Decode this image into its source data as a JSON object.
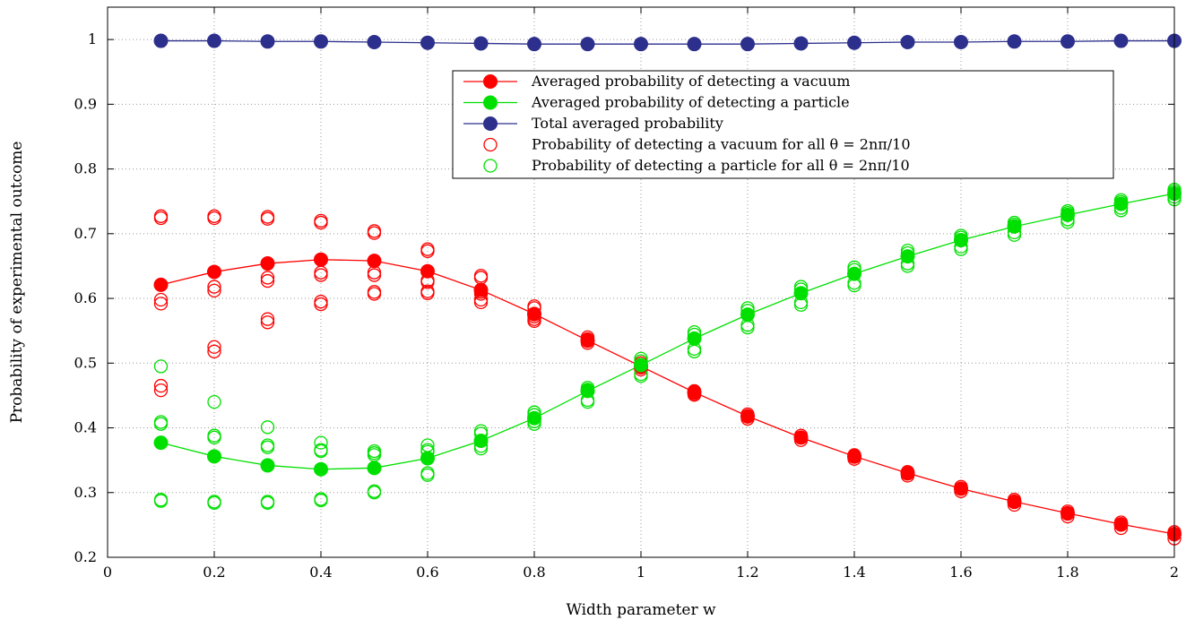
{
  "chart_data": {
    "type": "scatter",
    "xlabel": "Width parameter w",
    "ylabel": "Probability of experimental outcome",
    "xlim": [
      0,
      2
    ],
    "ylim": [
      0.2,
      1.05
    ],
    "grid": true,
    "legend_position": "top-right",
    "x_ticks": [
      "0",
      "0.2",
      "0.4",
      "0.6",
      "0.8",
      "1",
      "1.2",
      "1.4",
      "1.6",
      "1.8",
      "2"
    ],
    "y_ticks": [
      "0.2",
      "0.3",
      "0.4",
      "0.5",
      "0.6",
      "0.7",
      "0.8",
      "0.9",
      "1"
    ],
    "x": [
      0.1,
      0.2,
      0.3,
      0.4,
      0.5,
      0.6,
      0.7,
      0.8,
      0.9,
      1.0,
      1.1,
      1.2,
      1.3,
      1.4,
      1.5,
      1.6,
      1.7,
      1.8,
      1.9,
      2.0
    ],
    "series": [
      {
        "name": "Averaged probability of detecting a vacuum",
        "style": "line-filled-markers",
        "color": "#ff0000",
        "values": [
          0.621,
          0.641,
          0.654,
          0.66,
          0.658,
          0.642,
          0.613,
          0.576,
          0.535,
          0.495,
          0.455,
          0.418,
          0.385,
          0.356,
          0.33,
          0.306,
          0.286,
          0.268,
          0.251,
          0.236
        ]
      },
      {
        "name": "Averaged probability of detecting a particle",
        "style": "line-filled-markers",
        "color": "#00e000",
        "values": [
          0.377,
          0.356,
          0.342,
          0.336,
          0.338,
          0.353,
          0.38,
          0.415,
          0.457,
          0.497,
          0.538,
          0.575,
          0.608,
          0.638,
          0.665,
          0.69,
          0.711,
          0.729,
          0.746,
          0.762
        ]
      },
      {
        "name": "Total averaged probability",
        "style": "line-filled-markers",
        "color": "#2c2f8c",
        "values": [
          0.998,
          0.998,
          0.997,
          0.997,
          0.996,
          0.995,
          0.994,
          0.993,
          0.993,
          0.993,
          0.993,
          0.993,
          0.994,
          0.995,
          0.996,
          0.996,
          0.997,
          0.997,
          0.998,
          0.998
        ]
      }
    ],
    "scatter_series": [
      {
        "name": "Probability of detecting a vacuum for all θ = 2nπ/10",
        "style": "open-circles",
        "color": "#ff0000",
        "points": [
          [
            0.1,
            0.727
          ],
          [
            0.1,
            0.724
          ],
          [
            0.1,
            0.598
          ],
          [
            0.1,
            0.592
          ],
          [
            0.1,
            0.465
          ],
          [
            0.1,
            0.458
          ],
          [
            0.2,
            0.727
          ],
          [
            0.2,
            0.724
          ],
          [
            0.2,
            0.618
          ],
          [
            0.2,
            0.612
          ],
          [
            0.2,
            0.525
          ],
          [
            0.2,
            0.518
          ],
          [
            0.3,
            0.726
          ],
          [
            0.3,
            0.723
          ],
          [
            0.3,
            0.632
          ],
          [
            0.3,
            0.627
          ],
          [
            0.3,
            0.568
          ],
          [
            0.3,
            0.563
          ],
          [
            0.4,
            0.72
          ],
          [
            0.4,
            0.717
          ],
          [
            0.4,
            0.64
          ],
          [
            0.4,
            0.636
          ],
          [
            0.4,
            0.595
          ],
          [
            0.4,
            0.591
          ],
          [
            0.5,
            0.704
          ],
          [
            0.5,
            0.701
          ],
          [
            0.5,
            0.64
          ],
          [
            0.5,
            0.636
          ],
          [
            0.5,
            0.61
          ],
          [
            0.5,
            0.607
          ],
          [
            0.6,
            0.676
          ],
          [
            0.6,
            0.673
          ],
          [
            0.6,
            0.628
          ],
          [
            0.6,
            0.625
          ],
          [
            0.6,
            0.611
          ],
          [
            0.6,
            0.608
          ],
          [
            0.7,
            0.635
          ],
          [
            0.7,
            0.632
          ],
          [
            0.7,
            0.61
          ],
          [
            0.7,
            0.607
          ],
          [
            0.7,
            0.598
          ],
          [
            0.7,
            0.594
          ],
          [
            0.8,
            0.588
          ],
          [
            0.8,
            0.585
          ],
          [
            0.8,
            0.575
          ],
          [
            0.8,
            0.572
          ],
          [
            0.8,
            0.568
          ],
          [
            0.8,
            0.565
          ],
          [
            0.9,
            0.54
          ],
          [
            0.9,
            0.537
          ],
          [
            0.9,
            0.534
          ],
          [
            0.9,
            0.531
          ],
          [
            1.0,
            0.5
          ],
          [
            1.0,
            0.497
          ],
          [
            1.0,
            0.493
          ],
          [
            1.0,
            0.49
          ],
          [
            1.1,
            0.457
          ],
          [
            1.1,
            0.453
          ],
          [
            1.1,
            0.451
          ],
          [
            1.2,
            0.421
          ],
          [
            1.2,
            0.417
          ],
          [
            1.2,
            0.414
          ],
          [
            1.3,
            0.388
          ],
          [
            1.3,
            0.385
          ],
          [
            1.3,
            0.381
          ],
          [
            1.4,
            0.358
          ],
          [
            1.4,
            0.355
          ],
          [
            1.4,
            0.352
          ],
          [
            1.5,
            0.332
          ],
          [
            1.5,
            0.329
          ],
          [
            1.5,
            0.326
          ],
          [
            1.6,
            0.309
          ],
          [
            1.6,
            0.306
          ],
          [
            1.6,
            0.302
          ],
          [
            1.7,
            0.289
          ],
          [
            1.7,
            0.285
          ],
          [
            1.7,
            0.281
          ],
          [
            1.8,
            0.271
          ],
          [
            1.8,
            0.267
          ],
          [
            1.8,
            0.263
          ],
          [
            1.9,
            0.254
          ],
          [
            1.9,
            0.25
          ],
          [
            1.9,
            0.245
          ],
          [
            2.0,
            0.239
          ],
          [
            2.0,
            0.235
          ],
          [
            2.0,
            0.229
          ]
        ]
      },
      {
        "name": "Probability of detecting a particle for all θ = 2nπ/10",
        "style": "open-circles",
        "color": "#00e000",
        "points": [
          [
            0.1,
            0.495
          ],
          [
            0.1,
            0.409
          ],
          [
            0.1,
            0.406
          ],
          [
            0.1,
            0.289
          ],
          [
            0.1,
            0.287
          ],
          [
            0.2,
            0.44
          ],
          [
            0.2,
            0.388
          ],
          [
            0.2,
            0.385
          ],
          [
            0.2,
            0.286
          ],
          [
            0.2,
            0.284
          ],
          [
            0.3,
            0.401
          ],
          [
            0.3,
            0.373
          ],
          [
            0.3,
            0.37
          ],
          [
            0.3,
            0.286
          ],
          [
            0.3,
            0.284
          ],
          [
            0.4,
            0.377
          ],
          [
            0.4,
            0.366
          ],
          [
            0.4,
            0.364
          ],
          [
            0.4,
            0.29
          ],
          [
            0.4,
            0.288
          ],
          [
            0.5,
            0.364
          ],
          [
            0.5,
            0.361
          ],
          [
            0.5,
            0.358
          ],
          [
            0.5,
            0.302
          ],
          [
            0.5,
            0.3
          ],
          [
            0.6,
            0.373
          ],
          [
            0.6,
            0.366
          ],
          [
            0.6,
            0.363
          ],
          [
            0.6,
            0.33
          ],
          [
            0.6,
            0.327
          ],
          [
            0.7,
            0.395
          ],
          [
            0.7,
            0.391
          ],
          [
            0.7,
            0.372
          ],
          [
            0.7,
            0.368
          ],
          [
            0.8,
            0.424
          ],
          [
            0.8,
            0.42
          ],
          [
            0.8,
            0.41
          ],
          [
            0.8,
            0.406
          ],
          [
            0.9,
            0.462
          ],
          [
            0.9,
            0.459
          ],
          [
            0.9,
            0.443
          ],
          [
            0.9,
            0.44
          ],
          [
            1.0,
            0.507
          ],
          [
            1.0,
            0.503
          ],
          [
            1.0,
            0.483
          ],
          [
            1.0,
            0.48
          ],
          [
            1.1,
            0.548
          ],
          [
            1.1,
            0.544
          ],
          [
            1.1,
            0.522
          ],
          [
            1.1,
            0.518
          ],
          [
            1.2,
            0.585
          ],
          [
            1.2,
            0.581
          ],
          [
            1.2,
            0.559
          ],
          [
            1.2,
            0.555
          ],
          [
            1.3,
            0.618
          ],
          [
            1.3,
            0.614
          ],
          [
            1.3,
            0.594
          ],
          [
            1.3,
            0.59
          ],
          [
            1.4,
            0.648
          ],
          [
            1.4,
            0.644
          ],
          [
            1.4,
            0.624
          ],
          [
            1.4,
            0.62
          ],
          [
            1.5,
            0.674
          ],
          [
            1.5,
            0.67
          ],
          [
            1.5,
            0.654
          ],
          [
            1.5,
            0.65
          ],
          [
            1.6,
            0.697
          ],
          [
            1.6,
            0.694
          ],
          [
            1.6,
            0.68
          ],
          [
            1.6,
            0.676
          ],
          [
            1.7,
            0.717
          ],
          [
            1.7,
            0.714
          ],
          [
            1.7,
            0.702
          ],
          [
            1.7,
            0.698
          ],
          [
            1.8,
            0.735
          ],
          [
            1.8,
            0.732
          ],
          [
            1.8,
            0.722
          ],
          [
            1.8,
            0.718
          ],
          [
            1.9,
            0.752
          ],
          [
            1.9,
            0.749
          ],
          [
            1.9,
            0.74
          ],
          [
            1.9,
            0.736
          ],
          [
            2.0,
            0.768
          ],
          [
            2.0,
            0.765
          ],
          [
            2.0,
            0.757
          ],
          [
            2.0,
            0.753
          ]
        ]
      }
    ]
  }
}
